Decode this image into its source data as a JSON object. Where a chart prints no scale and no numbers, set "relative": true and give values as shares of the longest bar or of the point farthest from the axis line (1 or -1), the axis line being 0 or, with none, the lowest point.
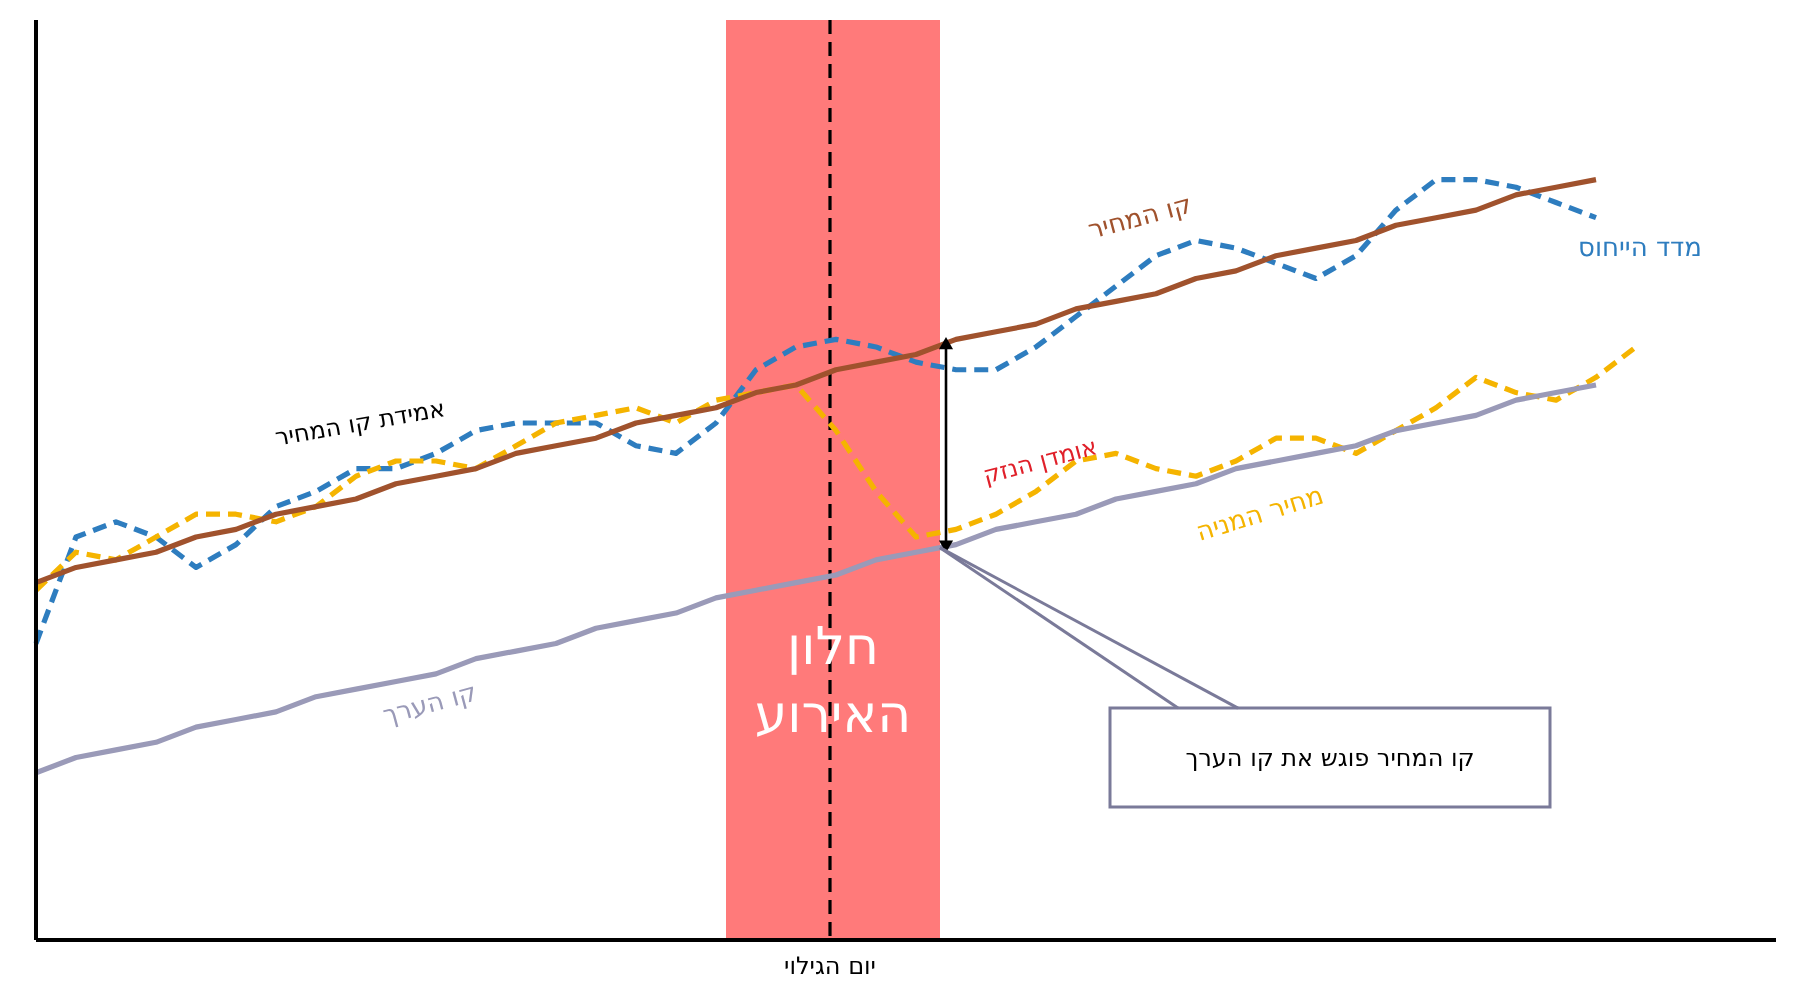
{
  "chart_data": {
    "type": "line",
    "relative": true,
    "marker": "none",
    "categories": [
      null,
      null,
      null,
      null,
      null,
      null,
      null,
      null,
      null,
      null,
      null,
      null,
      null,
      null,
      null,
      null,
      null,
      null,
      null,
      null,
      null,
      null,
      null,
      null,
      null,
      null,
      null,
      null,
      null,
      null,
      null,
      null,
      null,
      null,
      null,
      null,
      null,
      null,
      null,
      null,
      null
    ],
    "series": [
      {
        "name": "מדד הייחוס",
        "color": "#2e7dbf",
        "line_style": "dashed",
        "values": [
          0.39,
          0.53,
          0.55,
          0.53,
          0.49,
          0.52,
          0.57,
          0.59,
          0.62,
          0.62,
          0.64,
          0.67,
          0.68,
          0.68,
          0.68,
          0.65,
          0.64,
          0.68,
          0.75,
          0.78,
          0.79,
          0.78,
          0.76,
          0.75,
          0.75,
          0.78,
          0.82,
          0.86,
          0.9,
          0.92,
          0.91,
          0.89,
          0.87,
          0.9,
          0.96,
          1.0,
          1.0,
          0.99,
          0.97,
          0.95,
          null
        ]
      },
      {
        "name": "מחיר המניה",
        "color": "#f5b400",
        "line_style": "dashed",
        "values": [
          0.46,
          0.51,
          0.5,
          0.53,
          0.56,
          0.56,
          0.55,
          0.57,
          0.61,
          0.63,
          0.63,
          0.62,
          0.65,
          0.68,
          0.69,
          0.7,
          0.68,
          0.71,
          0.72,
          0.73,
          0.67,
          0.59,
          0.53,
          0.54,
          0.56,
          0.59,
          0.63,
          0.64,
          0.62,
          0.61,
          0.63,
          0.66,
          0.66,
          0.64,
          0.67,
          0.7,
          0.74,
          0.72,
          0.71,
          0.74,
          0.78
        ]
      },
      {
        "name": "קו המחיר",
        "color": "#a0522d",
        "line_style": "solid",
        "values": [
          0.47,
          0.49,
          0.5,
          0.51,
          0.53,
          0.54,
          0.56,
          0.57,
          0.58,
          0.6,
          0.61,
          0.62,
          0.64,
          0.65,
          0.66,
          0.68,
          0.69,
          0.7,
          0.72,
          0.73,
          0.75,
          0.76,
          0.77,
          0.79,
          0.8,
          0.81,
          0.83,
          0.84,
          0.85,
          0.87,
          0.88,
          0.9,
          0.91,
          0.92,
          0.94,
          0.95,
          0.96,
          0.98,
          0.99,
          1.0,
          null
        ]
      },
      {
        "name": "קו הערך",
        "color": "#9a9ab8",
        "line_style": "solid",
        "values": [
          0.22,
          0.24,
          0.25,
          0.26,
          0.28,
          0.29,
          0.3,
          0.32,
          0.33,
          0.34,
          0.35,
          0.37,
          0.38,
          0.39,
          0.41,
          0.42,
          0.43,
          0.45,
          0.46,
          0.47,
          0.48,
          0.5,
          0.51,
          0.52,
          0.54,
          0.55,
          0.56,
          0.58,
          0.59,
          0.6,
          0.62,
          0.63,
          0.64,
          0.65,
          0.67,
          0.68,
          0.69,
          0.71,
          0.72,
          0.73,
          null
        ]
      }
    ],
    "annotations": [
      "אמידת קו המחיר",
      "אומדן הנזק",
      "קו המחיר פוגש את קו הערך",
      "חלון האירוע",
      "יום הגילוי"
    ]
  }
}
